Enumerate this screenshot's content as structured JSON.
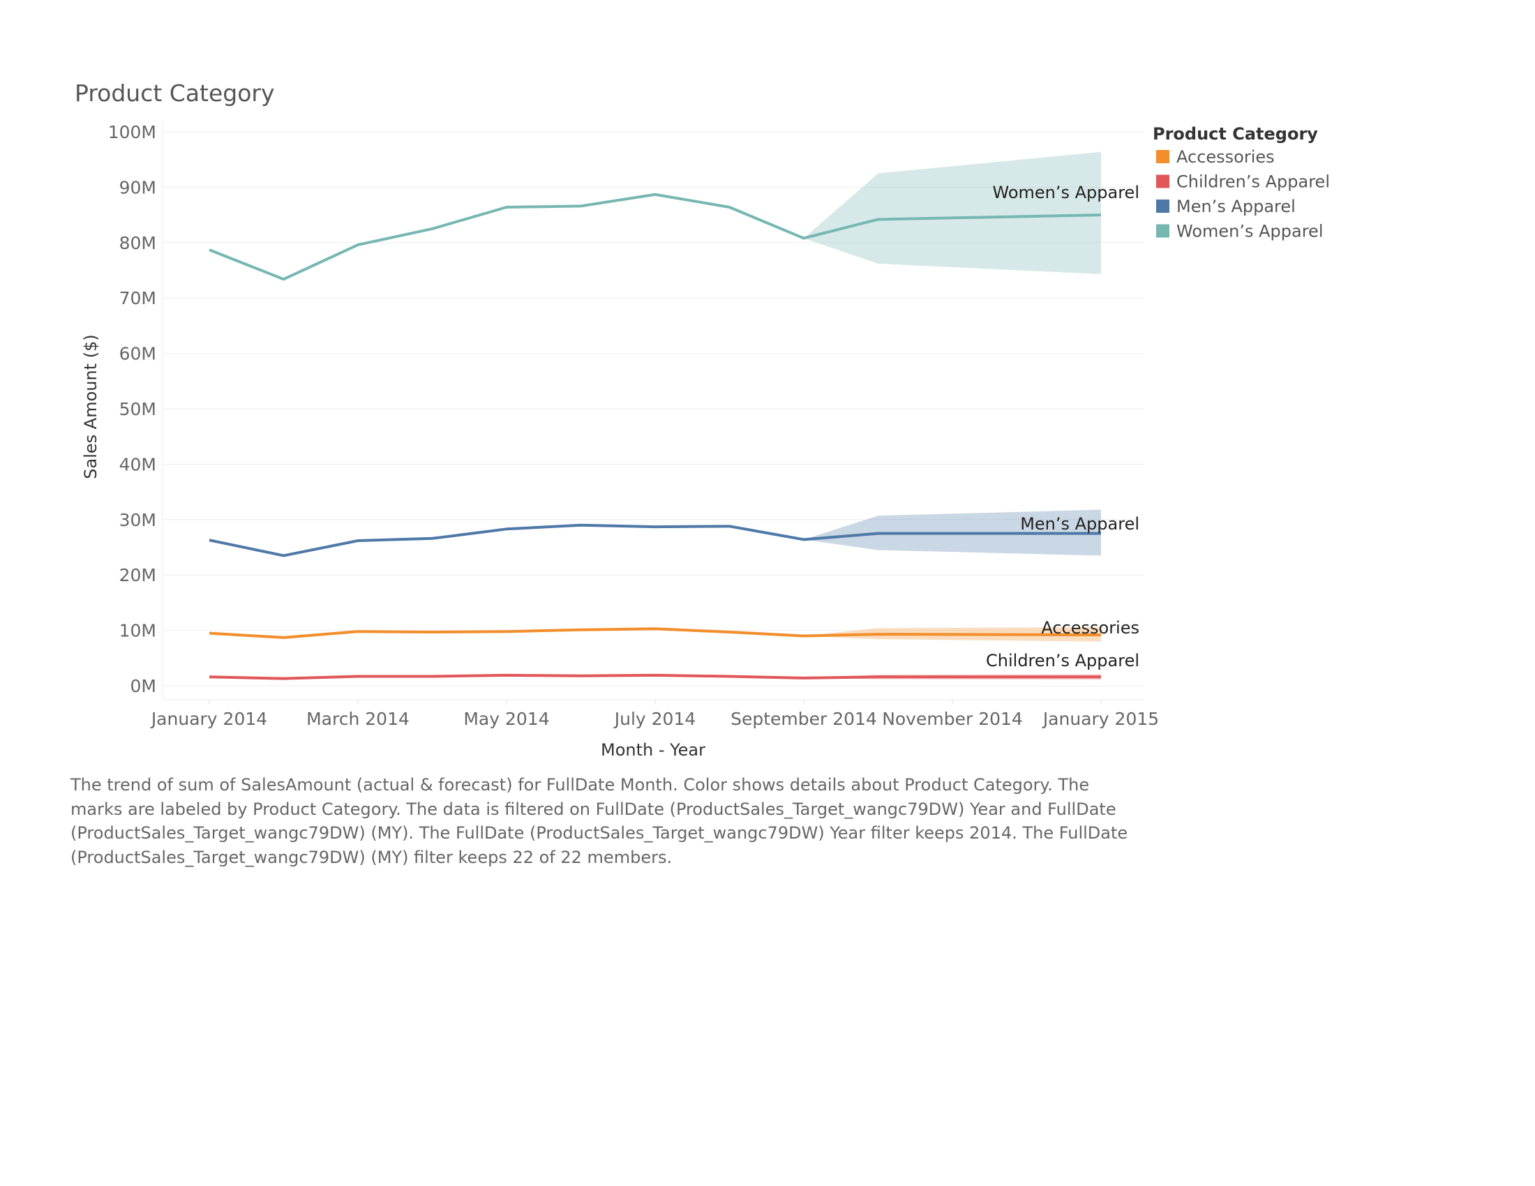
{
  "chart_data": {
    "type": "line",
    "title": "Product Category",
    "xlabel": "Month - Year",
    "ylabel": "Sales Amount ($)",
    "ylim": [
      0,
      100000000
    ],
    "y_ticks": [
      "0M",
      "10M",
      "20M",
      "30M",
      "40M",
      "50M",
      "60M",
      "70M",
      "80M",
      "90M",
      "100M"
    ],
    "x_ticks": [
      "January 2014",
      "March 2014",
      "May 2014",
      "July 2014",
      "September 2014",
      "November 2014",
      "January 2015"
    ],
    "x": [
      "2014-01",
      "2014-02",
      "2014-03",
      "2014-04",
      "2014-05",
      "2014-06",
      "2014-07",
      "2014-08",
      "2014-09",
      "2014-10",
      "2015-01"
    ],
    "forecast_start": "2014-09",
    "grid": true,
    "legend": {
      "title": "Product Category",
      "placement": "right"
    },
    "series": [
      {
        "name": "Accessories",
        "color": "#F28E2B",
        "values": [
          9.5,
          8.7,
          9.8,
          9.7,
          9.8,
          10.1,
          10.3,
          9.7,
          9.0,
          9.3,
          9.2
        ],
        "forecast_band": [
          [
            9.0,
            9.0
          ],
          [
            8.4,
            10.4
          ],
          [
            8.0,
            10.6
          ]
        ]
      },
      {
        "name": "Children’s Apparel",
        "color": "#E15759",
        "values": [
          1.6,
          1.3,
          1.7,
          1.7,
          1.9,
          1.8,
          1.9,
          1.7,
          1.4,
          1.6,
          1.6
        ],
        "forecast_band": [
          [
            1.4,
            1.4
          ],
          [
            1.2,
            2.0
          ],
          [
            1.1,
            2.1
          ]
        ]
      },
      {
        "name": "Men’s Apparel",
        "color": "#4E79A7",
        "values": [
          26.3,
          23.5,
          26.2,
          26.6,
          28.3,
          29.0,
          28.7,
          28.8,
          26.4,
          27.5,
          27.5
        ],
        "forecast_band": [
          [
            26.4,
            26.4
          ],
          [
            24.5,
            30.7
          ],
          [
            23.5,
            31.8
          ]
        ]
      },
      {
        "name": "Women’s Apparel",
        "color": "#76B7B2",
        "values": [
          78.7,
          73.4,
          79.6,
          82.5,
          86.4,
          86.6,
          88.7,
          86.4,
          80.8,
          84.2,
          85.0
        ],
        "forecast_band": [
          [
            80.8,
            80.8
          ],
          [
            76.2,
            92.5
          ],
          [
            74.3,
            96.4
          ]
        ]
      }
    ]
  },
  "caption": "The trend of sum of SalesAmount (actual & forecast)  for FullDate Month.  Color shows details about Product Category.  The marks are labeled by Product Category. The data is filtered on FullDate (ProductSales_Target_wangc79DW) Year and FullDate (ProductSales_Target_wangc79DW) (MY). The FullDate (ProductSales_Target_wangc79DW) Year filter keeps 2014. The FullDate (ProductSales_Target_wangc79DW) (MY) filter keeps 22 of 22 members."
}
